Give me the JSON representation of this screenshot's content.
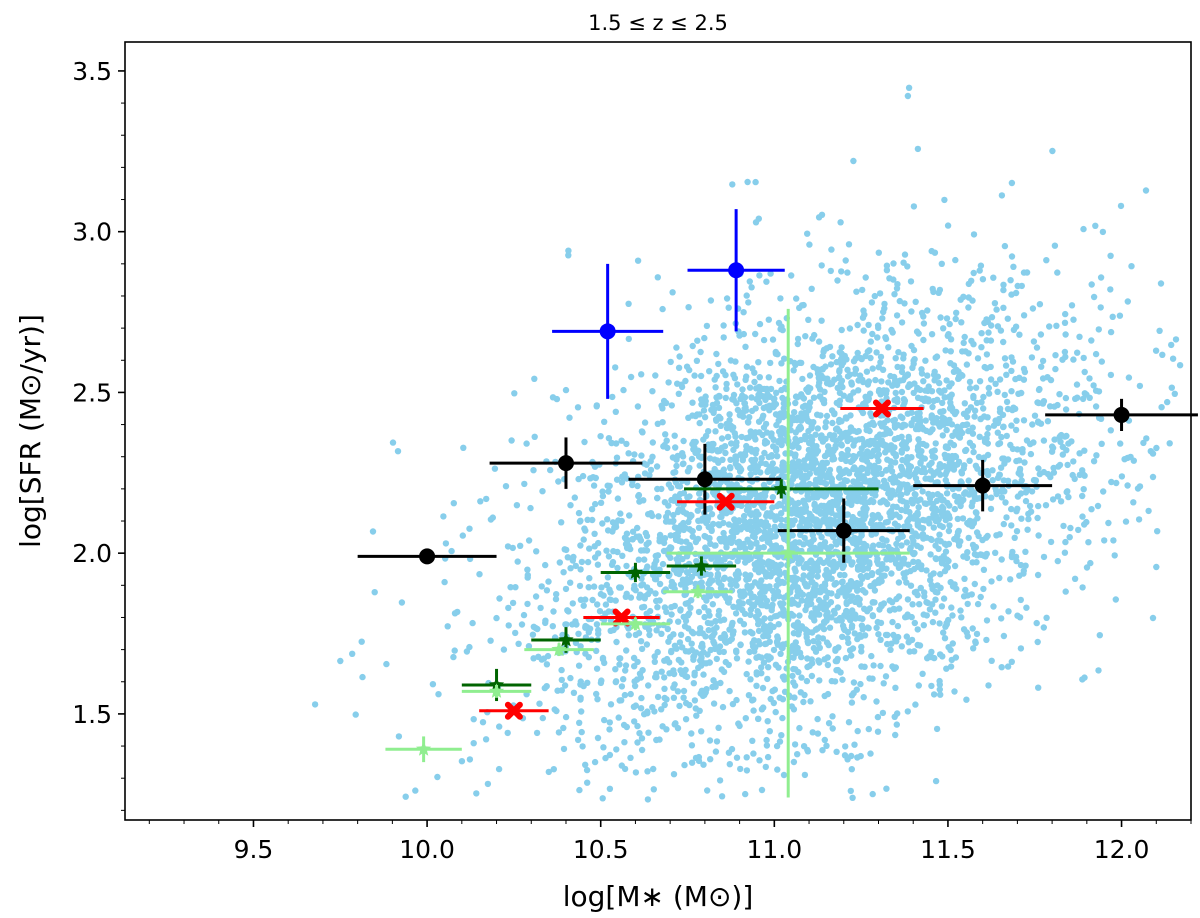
{
  "chart_data": {
    "type": "scatter",
    "title": "1.5 ≤ z ≤ 2.5",
    "xlabel": "log[M∗ (M⊙)]",
    "ylabel": "log[SFR (M⊙/yr)]",
    "xlim": [
      9.13,
      12.2
    ],
    "ylim": [
      1.17,
      3.59
    ],
    "xticks": [
      9.5,
      10.0,
      10.5,
      11.0,
      11.5,
      12.0
    ],
    "xtick_labels": [
      "9.5",
      "10.0",
      "10.5",
      "11.0",
      "11.5",
      "12.0"
    ],
    "yticks": [
      1.5,
      2.0,
      2.5,
      3.0,
      3.5
    ],
    "ytick_labels": [
      "1.5",
      "2.0",
      "2.5",
      "3.0",
      "3.5"
    ],
    "grid": false,
    "background_cloud": {
      "color": "#87ceeb",
      "description_count": 4500,
      "center": [
        11.1,
        2.1
      ],
      "spread": [
        0.35,
        0.3
      ],
      "x_range": [
        9.57,
        12.2
      ],
      "y_range": [
        1.23,
        3.59
      ]
    },
    "series": [
      {
        "name": "black",
        "color": "#000000",
        "marker": "circle",
        "points": [
          {
            "x": 10.0,
            "y": 1.99,
            "xerr": 0.2,
            "yerr": 0.02
          },
          {
            "x": 10.4,
            "y": 2.28,
            "xerr": 0.22,
            "yerr": 0.08
          },
          {
            "x": 10.8,
            "y": 2.23,
            "xerr": 0.22,
            "yerr": 0.11
          },
          {
            "x": 11.2,
            "y": 2.07,
            "xerr": 0.19,
            "yerr": 0.1
          },
          {
            "x": 11.6,
            "y": 2.21,
            "xerr": 0.2,
            "yerr": 0.08
          },
          {
            "x": 12.0,
            "y": 2.43,
            "xerr": 0.22,
            "yerr": 0.05
          }
        ]
      },
      {
        "name": "blue",
        "color": "#0000ff",
        "marker": "circle",
        "points": [
          {
            "x": 10.52,
            "y": 2.69,
            "xerr": 0.16,
            "yerr": 0.21
          },
          {
            "x": 10.89,
            "y": 2.88,
            "xerr": 0.14,
            "yerr": 0.19
          }
        ]
      },
      {
        "name": "red",
        "color": "#ff0000",
        "marker": "cross",
        "points": [
          {
            "x": 10.25,
            "y": 1.51,
            "xerr": 0.1,
            "yerr": 0.01
          },
          {
            "x": 10.56,
            "y": 1.8,
            "xerr": 0.11,
            "yerr": 0.01
          },
          {
            "x": 10.86,
            "y": 2.16,
            "xerr": 0.14,
            "yerr": 0.01
          },
          {
            "x": 11.31,
            "y": 2.45,
            "xerr": 0.12,
            "yerr": 0.01
          }
        ]
      },
      {
        "name": "dark green",
        "color": "#006400",
        "marker": "star",
        "points": [
          {
            "x": 10.2,
            "y": 1.59,
            "xerr": 0.1,
            "yerr": 0.05
          },
          {
            "x": 10.4,
            "y": 1.73,
            "xerr": 0.1,
            "yerr": 0.04
          },
          {
            "x": 10.6,
            "y": 1.94,
            "xerr": 0.1,
            "yerr": 0.03
          },
          {
            "x": 10.79,
            "y": 1.96,
            "xerr": 0.1,
            "yerr": 0.03
          },
          {
            "x": 11.02,
            "y": 2.2,
            "xerr": 0.28,
            "yerr": 0.03
          }
        ]
      },
      {
        "name": "light green",
        "color": "#90ee90",
        "marker": "star",
        "points": [
          {
            "x": 9.99,
            "y": 1.39,
            "xerr": 0.11,
            "yerr": 0.04
          },
          {
            "x": 10.2,
            "y": 1.57,
            "xerr": 0.1,
            "yerr": 0.02
          },
          {
            "x": 10.38,
            "y": 1.7,
            "xerr": 0.1,
            "yerr": 0.02
          },
          {
            "x": 10.6,
            "y": 1.78,
            "xerr": 0.1,
            "yerr": 0.02
          },
          {
            "x": 10.78,
            "y": 1.88,
            "xerr": 0.1,
            "yerr": 0.02
          },
          {
            "x": 11.04,
            "y": 2.0,
            "xerr": 0.35,
            "yerr": 0.76
          }
        ]
      }
    ]
  }
}
